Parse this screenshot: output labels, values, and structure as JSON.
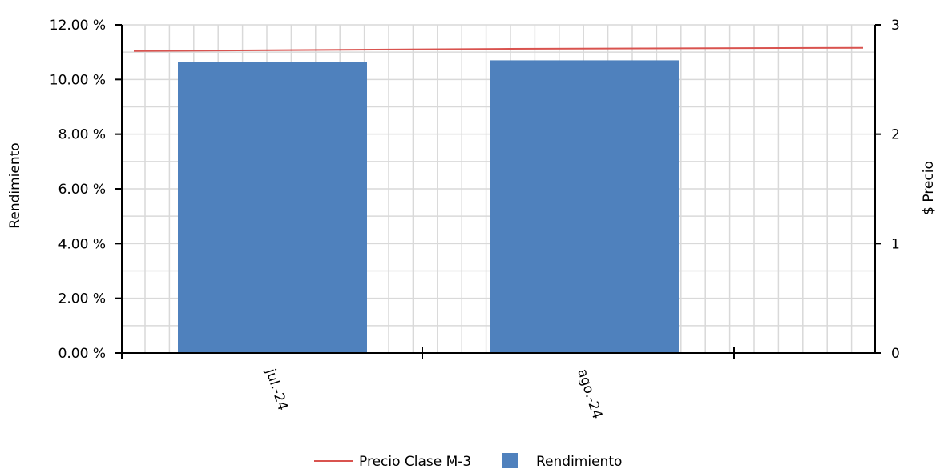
{
  "chart_data": {
    "type": "bar",
    "categories": [
      "jul.-24",
      "ago.-24"
    ],
    "series": [
      {
        "name": "Rendimiento",
        "type": "bar",
        "axis": "left",
        "values": [
          10.65,
          10.7
        ],
        "color": "#4f81bd"
      },
      {
        "name": "Precio Clase M-3",
        "type": "line",
        "axis": "right",
        "x": [
          "2024-07-01",
          "2024-07-31",
          "2024-08-31"
        ],
        "values": [
          2.76,
          2.78,
          2.79
        ],
        "color": "#d9534f"
      }
    ],
    "left_axis": {
      "label": "Rendimiento",
      "ylim": [
        0,
        12
      ],
      "ticks": [
        "0.00 %",
        "2.00 %",
        "4.00 %",
        "6.00 %",
        "8.00 %",
        "10.00 %",
        "12.00 %"
      ]
    },
    "right_axis": {
      "label": "$ Precio",
      "ylim": [
        0,
        3
      ],
      "ticks": [
        "0",
        "1",
        "2",
        "3"
      ]
    },
    "x_axis": {
      "ticks": [
        "jul.-24",
        "ago.-24"
      ],
      "tick_rotation": "rotated"
    },
    "grid": true,
    "legend": {
      "position": "bottom-center",
      "entries": [
        {
          "label": "Precio Clase M-3",
          "symbol": "line",
          "color": "#d9534f"
        },
        {
          "label": "Rendimiento",
          "symbol": "square",
          "color": "#4f81bd"
        }
      ]
    }
  }
}
